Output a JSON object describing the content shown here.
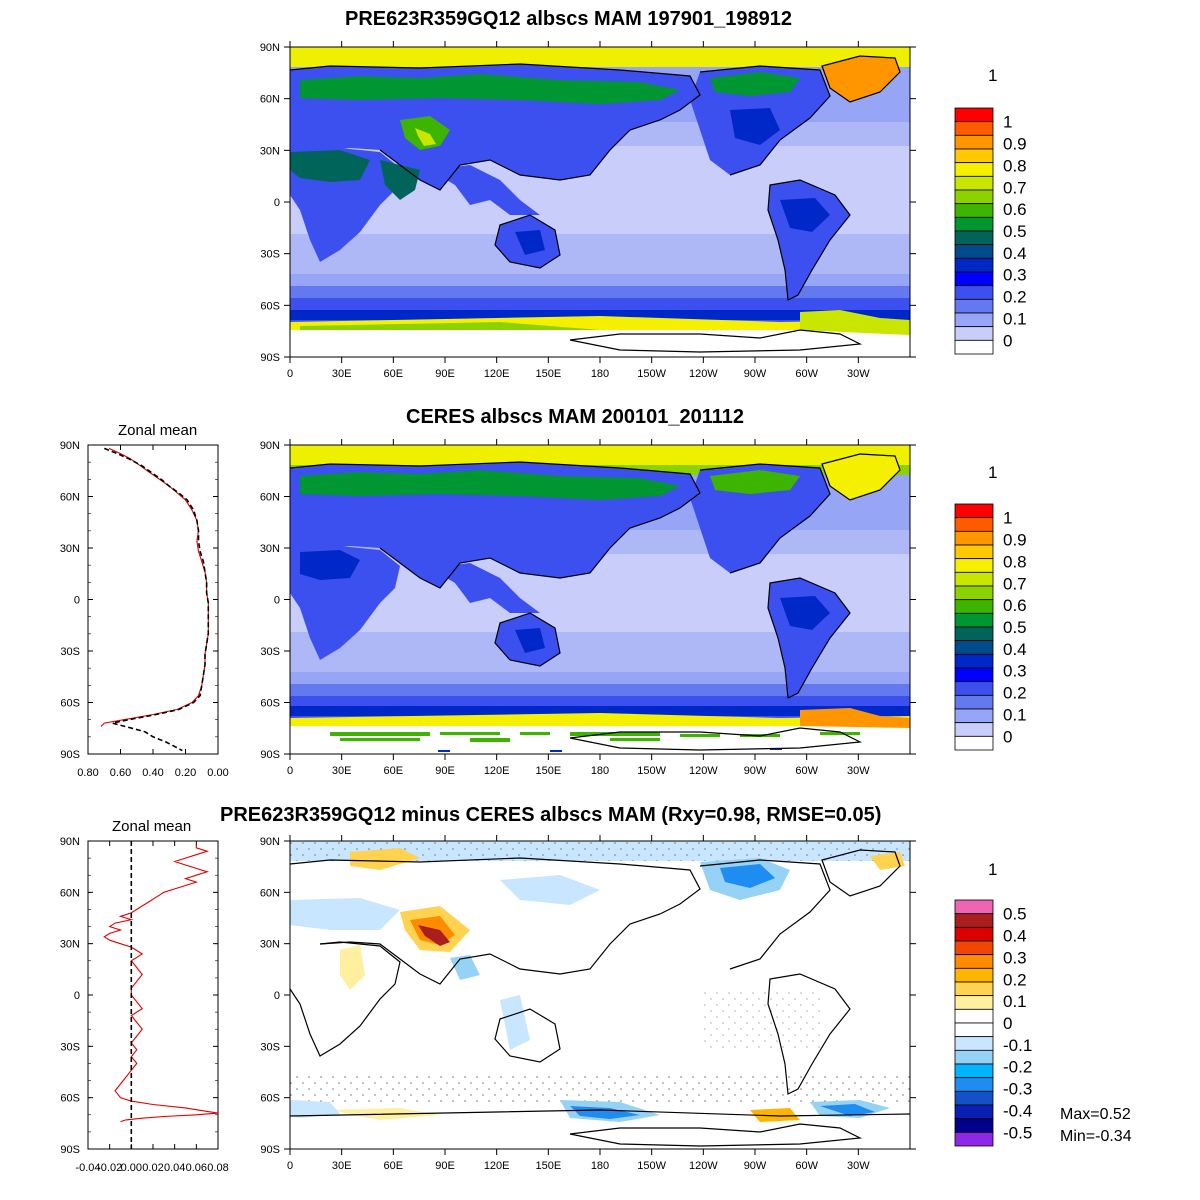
{
  "panels": {
    "model": {
      "title": "PRE623R359GQ12 albscs MAM 197901_198912",
      "units": "1",
      "zonal_values": []
    },
    "obs": {
      "title": "CERES albscs MAM 200101_201112",
      "units": "1",
      "zonal_title": "Zonal mean"
    },
    "diff": {
      "title": "PRE623R359GQ12 minus CERES albscs MAM (Rxy=0.98, RMSE=0.05)",
      "units": "1",
      "zonal_title": "Zonal mean",
      "stats_max": "Max=0.52",
      "stats_min": "Min=-0.34"
    }
  },
  "map_axes": {
    "lon_ticks": [
      "0",
      "30E",
      "60E",
      "90E",
      "120E",
      "150E",
      "180",
      "150W",
      "120W",
      "90W",
      "60W",
      "30W"
    ],
    "lat_ticks": [
      "90N",
      "60N",
      "30N",
      "0",
      "30S",
      "60S",
      "90S"
    ]
  },
  "colorbars": {
    "abs": {
      "labels": [
        "1",
        "0.9",
        "0.8",
        "0.7",
        "0.6",
        "0.5",
        "0.4",
        "0.3",
        "0.2",
        "0.1",
        "0"
      ],
      "colors": [
        "#ff0000",
        "#ff5a00",
        "#ff9600",
        "#ffc800",
        "#f5f000",
        "#c8e600",
        "#8cd200",
        "#3cb400",
        "#009632",
        "#00645a",
        "#004b8c",
        "#0028c8",
        "#0000ff",
        "#3c50f0",
        "#6478f0",
        "#96a5f5",
        "#c8cdfa",
        "#ffffff"
      ]
    },
    "diff": {
      "labels": [
        "0.5",
        "0.4",
        "0.3",
        "0.2",
        "0.1",
        "0",
        "-0.1",
        "-0.2",
        "-0.3",
        "-0.4",
        "-0.5"
      ],
      "colors": [
        "#f064b4",
        "#aa1e1e",
        "#dc0000",
        "#f04600",
        "#ff8c00",
        "#ffb400",
        "#ffd250",
        "#fff0a0",
        "#ffffff",
        "#ffffff",
        "#c8e6ff",
        "#96d2f5",
        "#00b4ff",
        "#1e8cf0",
        "#1450c8",
        "#0a1eb4",
        "#00008c",
        "#8c28e6"
      ]
    }
  },
  "chart_data": [
    {
      "type": "line",
      "title": "Zonal mean",
      "panel": "obs",
      "xlim": [
        0.8,
        0.0
      ],
      "ylim": [
        -90,
        90
      ],
      "x_tick_labels": [
        "0.80",
        "0.60",
        "0.40",
        "0.20",
        "0.00"
      ],
      "y_tick_labels": [
        "90N",
        "60N",
        "30N",
        "0",
        "30S",
        "60S",
        "90S"
      ],
      "series": [
        {
          "color": "#e00000",
          "dash": "solid",
          "lat": [
            88,
            85,
            82,
            78,
            74,
            70,
            66,
            62,
            58,
            52,
            46,
            40,
            34,
            28,
            22,
            16,
            10,
            4,
            -2,
            -8,
            -14,
            -20,
            -26,
            -32,
            -38,
            -44,
            -50,
            -56,
            -60,
            -64,
            -67,
            -70,
            -72,
            -74
          ],
          "values": [
            0.67,
            0.6,
            0.54,
            0.48,
            0.42,
            0.36,
            0.3,
            0.25,
            0.2,
            0.16,
            0.13,
            0.12,
            0.13,
            0.12,
            0.1,
            0.08,
            0.07,
            0.07,
            0.06,
            0.06,
            0.06,
            0.06,
            0.07,
            0.08,
            0.08,
            0.09,
            0.1,
            0.12,
            0.16,
            0.25,
            0.4,
            0.58,
            0.7,
            0.72
          ]
        },
        {
          "color": "#000000",
          "dash": "dashed",
          "lat": [
            88,
            85,
            82,
            78,
            74,
            70,
            66,
            62,
            58,
            52,
            46,
            40,
            34,
            28,
            22,
            16,
            10,
            4,
            -2,
            -8,
            -14,
            -20,
            -26,
            -32,
            -38,
            -44,
            -50,
            -56,
            -60,
            -64,
            -67,
            -70,
            -72,
            -77,
            -80,
            -83,
            -86,
            -88
          ],
          "values": [
            0.7,
            0.62,
            0.55,
            0.47,
            0.41,
            0.35,
            0.3,
            0.24,
            0.19,
            0.15,
            0.13,
            0.12,
            0.12,
            0.11,
            0.09,
            0.08,
            0.07,
            0.07,
            0.06,
            0.06,
            0.06,
            0.06,
            0.07,
            0.08,
            0.08,
            0.09,
            0.1,
            0.11,
            0.15,
            0.24,
            0.38,
            0.55,
            0.65,
            0.45,
            0.4,
            0.32,
            0.26,
            0.22
          ]
        }
      ]
    },
    {
      "type": "line",
      "title": "Zonal mean",
      "panel": "diff",
      "xlim": [
        -0.04,
        0.08
      ],
      "ylim": [
        -90,
        90
      ],
      "x_tick_labels": [
        "-0.04",
        "-0.02",
        "0.00",
        "0.02",
        "0.04",
        "0.06",
        "0.08"
      ],
      "y_tick_labels": [
        "90N",
        "60N",
        "30N",
        "0",
        "30S",
        "60S",
        "90S"
      ],
      "series": [
        {
          "color": "#e00000",
          "dash": "solid",
          "lat": [
            88,
            86,
            84,
            82,
            80,
            78,
            76,
            74,
            72,
            70,
            68,
            66,
            64,
            62,
            60,
            58,
            56,
            54,
            52,
            50,
            48,
            46,
            44,
            42,
            40,
            38,
            36,
            34,
            32,
            30,
            28,
            26,
            24,
            22,
            20,
            16,
            12,
            8,
            4,
            0,
            -4,
            -8,
            -12,
            -16,
            -20,
            -24,
            -28,
            -32,
            -36,
            -40,
            -44,
            -48,
            -52,
            -56,
            -60,
            -62,
            -64,
            -66,
            -68,
            -69,
            -70,
            -71,
            -72,
            -73,
            -74
          ],
          "values": [
            0.06,
            0.06,
            0.07,
            0.06,
            0.05,
            0.04,
            0.05,
            0.06,
            0.07,
            0.06,
            0.05,
            0.06,
            0.05,
            0.04,
            0.03,
            0.025,
            0.02,
            0.015,
            0.01,
            0.005,
            0.0,
            -0.01,
            0.0,
            -0.015,
            -0.02,
            -0.01,
            -0.02,
            -0.025,
            -0.02,
            -0.01,
            0.0,
            0.005,
            0.01,
            0.005,
            0.0,
            0.005,
            0.01,
            0.005,
            0.0,
            0.0,
            0.005,
            0.01,
            0.0,
            0.005,
            0.01,
            0.005,
            0.0,
            0.005,
            0.0,
            0.005,
            0.0,
            -0.005,
            -0.01,
            -0.015,
            -0.01,
            0.0,
            0.02,
            0.05,
            0.07,
            0.08,
            0.06,
            0.03,
            0.01,
            -0.005,
            -0.01
          ]
        },
        {
          "color": "#000000",
          "dash": "dashed",
          "lat": [
            90,
            -90
          ],
          "values": [
            0,
            0
          ]
        }
      ]
    }
  ]
}
